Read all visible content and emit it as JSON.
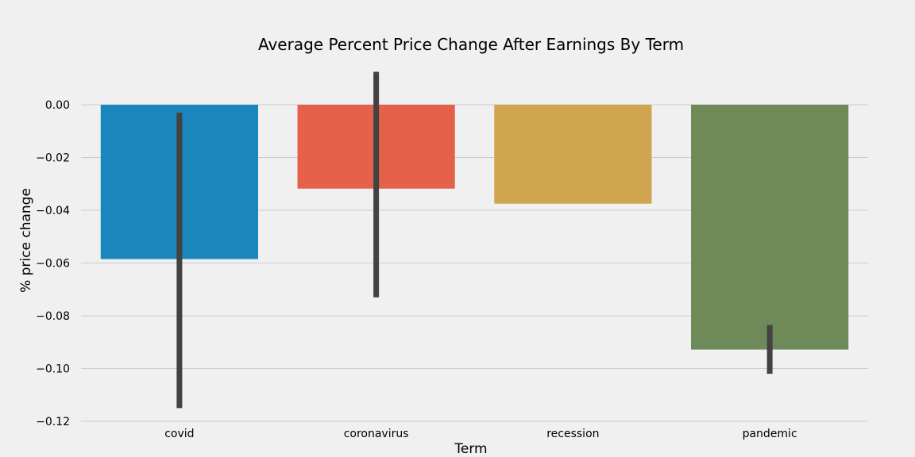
{
  "chart_data": {
    "type": "bar",
    "title": "Average Percent Price Change After Earnings By Term",
    "xlabel": "Term",
    "ylabel": "% price change",
    "categories": [
      "covid",
      "coronavirus",
      "recession",
      "pandemic"
    ],
    "values": [
      -0.0585,
      -0.0318,
      -0.0375,
      -0.0928
    ],
    "error_bars": [
      [
        -0.115,
        -0.003
      ],
      [
        -0.073,
        0.0125
      ],
      null,
      [
        -0.102,
        -0.0835
      ]
    ],
    "colors": [
      "#1a86bb",
      "#e5614a",
      "#d0a54f",
      "#6e8a58"
    ],
    "yticks": [
      0.0,
      -0.02,
      -0.04,
      -0.06,
      -0.08,
      -0.1,
      -0.12
    ],
    "ytick_labels": [
      "0.00",
      "−0.02",
      "−0.04",
      "−0.06",
      "−0.08",
      "−0.10",
      "−0.12"
    ],
    "ylim": [
      -0.12,
      0.0
    ],
    "grid": "horizontal",
    "legend": "none"
  }
}
